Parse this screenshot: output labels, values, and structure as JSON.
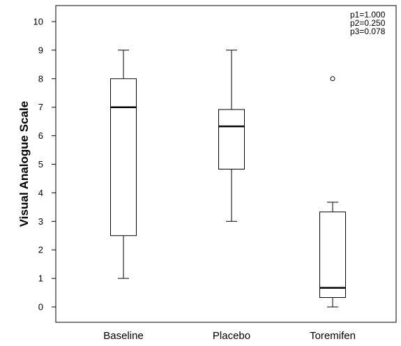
{
  "chart_data": {
    "type": "boxplot",
    "title": "",
    "xlabel": "",
    "ylabel": "Visual Analogue Scale",
    "ylim": [
      -0.5,
      10.6
    ],
    "yticks": [
      0,
      1,
      2,
      3,
      4,
      5,
      6,
      7,
      8,
      9,
      10
    ],
    "categories": [
      "Baseline",
      "Placebo",
      "Toremifen"
    ],
    "boxes": [
      {
        "category": "Baseline",
        "whisker_low": 1,
        "q1": 2.5,
        "median": 7,
        "q3": 8,
        "whisker_high": 9,
        "outliers": []
      },
      {
        "category": "Placebo",
        "whisker_low": 3,
        "q1": 4.83,
        "median": 6.33,
        "q3": 6.92,
        "whisker_high": 9,
        "outliers": []
      },
      {
        "category": "Toremifen",
        "whisker_low": 0,
        "q1": 0.33,
        "median": 0.67,
        "q3": 3.33,
        "whisker_high": 3.67,
        "outliers": [
          8
        ]
      }
    ],
    "annotations": [
      "p1=1.000",
      "p2=0.250",
      "p3=0.078"
    ],
    "grid": false,
    "legend": "none",
    "colors": {
      "box_fill": "#ffffff",
      "stroke": "#000000",
      "frame": "#000000"
    }
  }
}
